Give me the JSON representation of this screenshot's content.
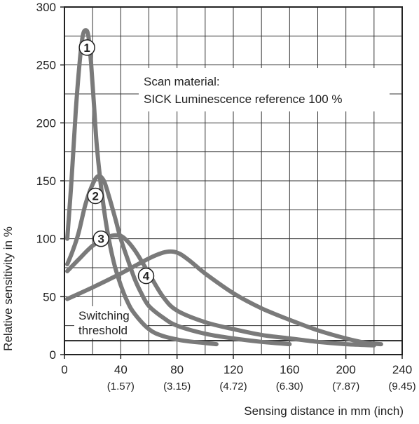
{
  "chart_data": {
    "type": "line",
    "title": "",
    "xlabel": "Sensing distance in mm (inch)",
    "ylabel": "Relative sensitivity in %",
    "xlim": [
      0,
      240
    ],
    "ylim": [
      0,
      300
    ],
    "x_ticks": [
      0,
      40,
      80,
      120,
      160,
      200,
      240
    ],
    "x_tick_labels": [
      "0",
      "40",
      "80",
      "120",
      "160",
      "200",
      "240"
    ],
    "x_tick_sublabels": [
      "",
      "(1.57)",
      "(3.15)",
      "(4.72)",
      "(6.30)",
      "(7.87)",
      "(9.45)"
    ],
    "y_ticks": [
      0,
      50,
      100,
      150,
      200,
      250,
      300
    ],
    "y_tick_labels": [
      "0",
      "50",
      "100",
      "150",
      "200",
      "250",
      "300"
    ],
    "grid": true,
    "colors": {
      "curve": "#7a7a7a",
      "threshold": "#222222",
      "grid": "#333333"
    },
    "annotation": {
      "line1": "Scan material:",
      "line2": "SICK Luminescence reference 100 %"
    },
    "threshold": {
      "value": 12,
      "label_line1": "Switching",
      "label_line2": "threshold"
    },
    "series": [
      {
        "name": "①",
        "label_at": [
          16,
          265
        ],
        "points": [
          [
            2,
            100
          ],
          [
            5,
            150
          ],
          [
            8,
            210
          ],
          [
            11,
            255
          ],
          [
            13,
            275
          ],
          [
            15,
            280
          ],
          [
            17,
            275
          ],
          [
            19,
            250
          ],
          [
            21,
            215
          ],
          [
            23,
            180
          ],
          [
            26,
            145
          ],
          [
            30,
            110
          ],
          [
            35,
            80
          ],
          [
            40,
            60
          ],
          [
            45,
            45
          ],
          [
            50,
            35
          ],
          [
            60,
            22
          ],
          [
            70,
            16
          ],
          [
            85,
            12
          ],
          [
            100,
            10
          ],
          [
            108,
            9
          ]
        ]
      },
      {
        "name": "②",
        "label_at": [
          22,
          137
        ],
        "points": [
          [
            2,
            78
          ],
          [
            6,
            90
          ],
          [
            10,
            105
          ],
          [
            15,
            130
          ],
          [
            20,
            147
          ],
          [
            24,
            154
          ],
          [
            28,
            150
          ],
          [
            32,
            135
          ],
          [
            36,
            118
          ],
          [
            40,
            100
          ],
          [
            45,
            82
          ],
          [
            50,
            65
          ],
          [
            55,
            52
          ],
          [
            60,
            42
          ],
          [
            70,
            32
          ],
          [
            80,
            25
          ],
          [
            100,
            18
          ],
          [
            120,
            14
          ],
          [
            140,
            11
          ],
          [
            160,
            9
          ]
        ]
      },
      {
        "name": "③",
        "label_at": [
          26,
          100
        ],
        "points": [
          [
            2,
            72
          ],
          [
            10,
            82
          ],
          [
            20,
            94
          ],
          [
            30,
            101
          ],
          [
            36,
            103
          ],
          [
            42,
            101
          ],
          [
            50,
            90
          ],
          [
            60,
            70
          ],
          [
            70,
            50
          ],
          [
            80,
            38
          ],
          [
            100,
            28
          ],
          [
            120,
            22
          ],
          [
            140,
            17
          ],
          [
            160,
            14
          ],
          [
            180,
            11
          ],
          [
            200,
            9
          ],
          [
            220,
            8
          ]
        ]
      },
      {
        "name": "④",
        "label_at": [
          58,
          68
        ],
        "points": [
          [
            2,
            48
          ],
          [
            20,
            58
          ],
          [
            40,
            70
          ],
          [
            60,
            83
          ],
          [
            70,
            88
          ],
          [
            76,
            89
          ],
          [
            82,
            87
          ],
          [
            90,
            80
          ],
          [
            100,
            70
          ],
          [
            120,
            53
          ],
          [
            140,
            40
          ],
          [
            160,
            30
          ],
          [
            180,
            21
          ],
          [
            200,
            14
          ],
          [
            215,
            10
          ],
          [
            225,
            9
          ]
        ]
      }
    ]
  }
}
